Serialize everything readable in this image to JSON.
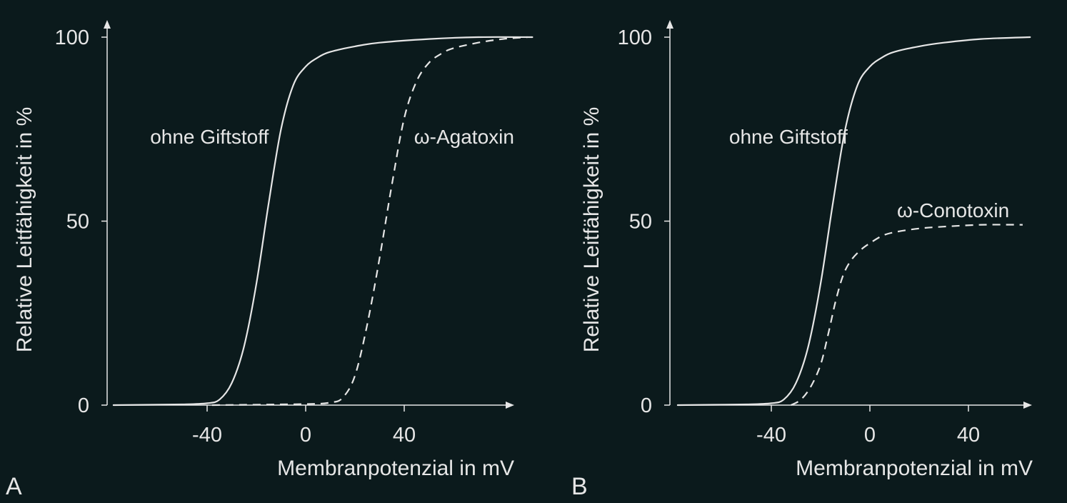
{
  "colors": {
    "background": "#0b1a1c",
    "foreground": "#e6e6e6"
  },
  "chart_data": [
    {
      "type": "line",
      "panel_label": "A",
      "xlabel": "Membranpotenzial in mV",
      "ylabel": "Relative Leitfähigkeit in %",
      "xlim": [
        -78,
        90
      ],
      "ylim": [
        0,
        100
      ],
      "x_ticks": [
        -40,
        0,
        40
      ],
      "x_tick_labels": [
        "-40",
        "0",
        "40"
      ],
      "y_ticks": [
        0,
        50,
        100
      ],
      "y_tick_labels": [
        "0",
        "50",
        "100"
      ],
      "grid": false,
      "series": [
        {
          "name": "ohne Giftstoff",
          "style": "solid",
          "x": [
            -78,
            -50,
            -40,
            -35,
            -30,
            -25,
            -20,
            -15,
            -10,
            -5,
            0,
            5,
            10,
            20,
            30,
            50,
            70,
            92
          ],
          "y": [
            0,
            0.2,
            0.5,
            1.5,
            6,
            16,
            33,
            55,
            75,
            87,
            92,
            94.5,
            96,
            97.5,
            98.5,
            99.5,
            100,
            100
          ]
        },
        {
          "name": "ω-Agatoxin",
          "style": "dashed",
          "x": [
            -38,
            0,
            10,
            15,
            20,
            25,
            30,
            35,
            40,
            45,
            50,
            55,
            60,
            70,
            80,
            90
          ],
          "y": [
            0,
            0.3,
            0.7,
            2,
            8,
            22,
            40,
            60,
            78,
            88,
            93,
            95.5,
            97,
            98.5,
            99.5,
            100
          ]
        }
      ],
      "annotations": [
        {
          "text": "ohne Giftstoff",
          "x": -15,
          "y": 73,
          "anchor": "end"
        },
        {
          "text": "ω-Agatoxin",
          "x": 44,
          "y": 73,
          "anchor": "start"
        }
      ]
    },
    {
      "type": "line",
      "panel_label": "B",
      "xlabel": "Membranpotenzial in mV",
      "ylabel": "Relative Leitfähigkeit in %",
      "xlim": [
        -78,
        65
      ],
      "ylim": [
        0,
        100
      ],
      "x_ticks": [
        -40,
        0,
        40
      ],
      "x_tick_labels": [
        "-40",
        "0",
        "40"
      ],
      "y_ticks": [
        0,
        50,
        100
      ],
      "y_tick_labels": [
        "0",
        "50",
        "100"
      ],
      "grid": false,
      "series": [
        {
          "name": "ohne Giftstoff",
          "style": "solid",
          "x": [
            -78,
            -50,
            -40,
            -35,
            -30,
            -25,
            -20,
            -15,
            -10,
            -5,
            0,
            5,
            10,
            20,
            30,
            45,
            65
          ],
          "y": [
            0,
            0.2,
            0.5,
            1.5,
            6,
            16,
            33,
            55,
            75,
            87,
            92,
            94.5,
            96,
            97.5,
            98.5,
            99.5,
            100
          ]
        },
        {
          "name": "ω-Conotoxin",
          "style": "dashed",
          "x": [
            -32,
            -28,
            -24,
            -20,
            -17,
            -14,
            -11,
            -8,
            -4,
            0,
            5,
            10,
            20,
            30,
            45,
            62
          ],
          "y": [
            0,
            1.5,
            5,
            11,
            19,
            28,
            35,
            39,
            42,
            44,
            46,
            47,
            48,
            48.5,
            49,
            49
          ]
        }
      ],
      "annotations": [
        {
          "text": "ohne Giftstoff",
          "x": -9,
          "y": 73,
          "anchor": "end"
        },
        {
          "text": "ω-Conotoxin",
          "x": 11,
          "y": 53,
          "anchor": "start"
        }
      ]
    }
  ]
}
